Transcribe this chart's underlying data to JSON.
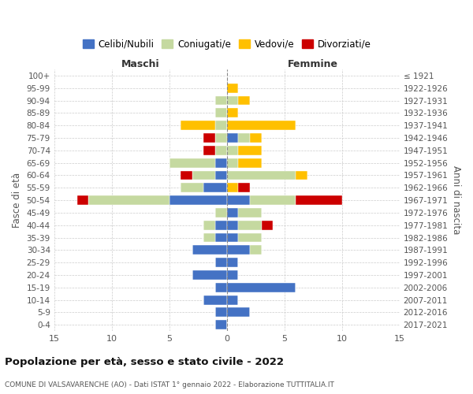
{
  "age_groups": [
    "0-4",
    "5-9",
    "10-14",
    "15-19",
    "20-24",
    "25-29",
    "30-34",
    "35-39",
    "40-44",
    "45-49",
    "50-54",
    "55-59",
    "60-64",
    "65-69",
    "70-74",
    "75-79",
    "80-84",
    "85-89",
    "90-94",
    "95-99",
    "100+"
  ],
  "birth_years": [
    "2017-2021",
    "2012-2016",
    "2007-2011",
    "2002-2006",
    "1997-2001",
    "1992-1996",
    "1987-1991",
    "1982-1986",
    "1977-1981",
    "1972-1976",
    "1967-1971",
    "1962-1966",
    "1957-1961",
    "1952-1956",
    "1947-1951",
    "1942-1946",
    "1937-1941",
    "1932-1936",
    "1927-1931",
    "1922-1926",
    "≤ 1921"
  ],
  "male": {
    "celibi": [
      1,
      1,
      2,
      1,
      3,
      1,
      3,
      1,
      1,
      0,
      5,
      2,
      1,
      1,
      0,
      0,
      0,
      0,
      0,
      0,
      0
    ],
    "coniugati": [
      0,
      0,
      0,
      0,
      0,
      0,
      0,
      1,
      1,
      1,
      7,
      2,
      2,
      4,
      1,
      1,
      1,
      1,
      1,
      0,
      0
    ],
    "vedovi": [
      0,
      0,
      0,
      0,
      0,
      0,
      0,
      0,
      0,
      0,
      0,
      0,
      0,
      0,
      0,
      0,
      3,
      0,
      0,
      0,
      0
    ],
    "divorziati": [
      0,
      0,
      0,
      0,
      0,
      0,
      0,
      0,
      0,
      0,
      1,
      0,
      1,
      0,
      1,
      1,
      0,
      0,
      0,
      0,
      0
    ]
  },
  "female": {
    "nubili": [
      0,
      2,
      1,
      6,
      1,
      1,
      2,
      1,
      1,
      1,
      2,
      0,
      0,
      0,
      0,
      1,
      0,
      0,
      0,
      0,
      0
    ],
    "coniugate": [
      0,
      0,
      0,
      0,
      0,
      0,
      1,
      2,
      2,
      2,
      4,
      0,
      6,
      1,
      1,
      1,
      0,
      0,
      1,
      0,
      0
    ],
    "vedove": [
      0,
      0,
      0,
      0,
      0,
      0,
      0,
      0,
      0,
      0,
      0,
      1,
      1,
      2,
      2,
      1,
      6,
      1,
      1,
      1,
      0
    ],
    "divorziate": [
      0,
      0,
      0,
      0,
      0,
      0,
      0,
      0,
      1,
      0,
      4,
      1,
      0,
      0,
      0,
      0,
      0,
      0,
      0,
      0,
      0
    ]
  },
  "colors": {
    "celibi_nubili": "#4472c4",
    "coniugati": "#c5d9a0",
    "vedovi": "#ffc000",
    "divorziati": "#cc0000"
  },
  "xlim": 15,
  "title": "Popolazione per età, sesso e stato civile - 2022",
  "subtitle": "COMUNE DI VALSAVARENCHE (AO) - Dati ISTAT 1° gennaio 2022 - Elaborazione TUTTITALIA.IT",
  "ylabel_left": "Fasce di età",
  "ylabel_right": "Anni di nascita",
  "legend_labels": [
    "Celibi/Nubili",
    "Coniugati/e",
    "Vedovi/e",
    "Divorziati/e"
  ],
  "background_color": "#ffffff",
  "grid_color": "#cccccc"
}
